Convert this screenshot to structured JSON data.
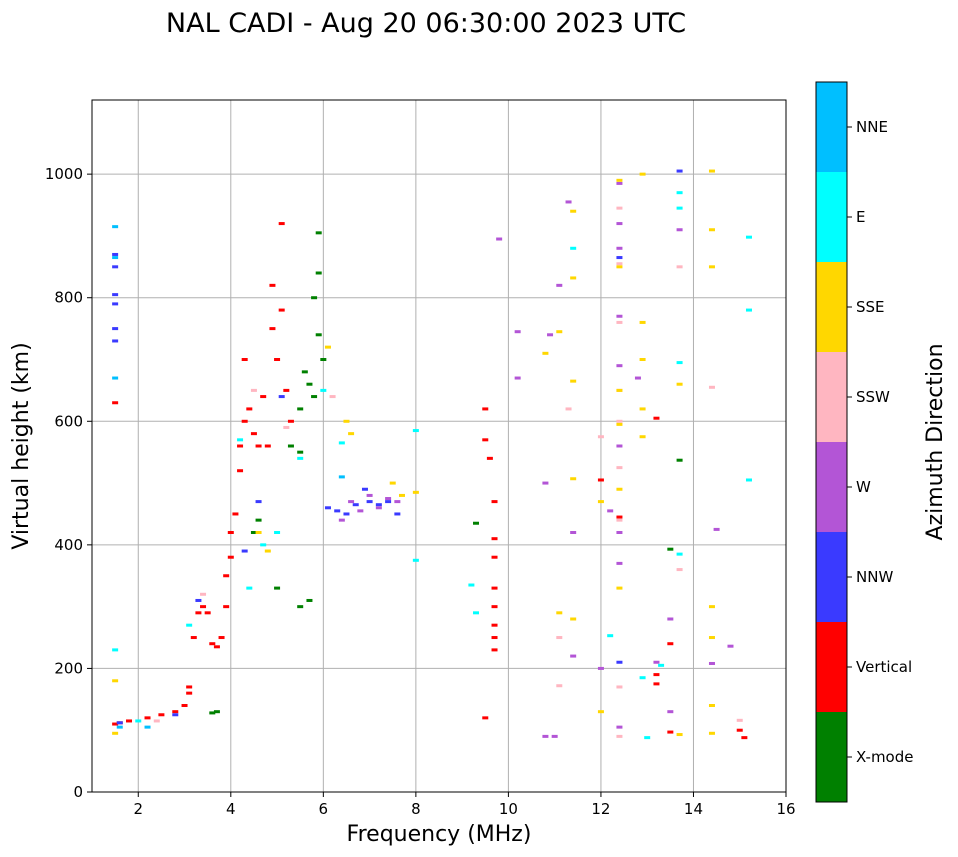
{
  "chart_data": {
    "type": "scatter",
    "title": "NAL CADI - Aug 20 06:30:00 2023 UTC",
    "xlabel": "Frequency (MHz)",
    "ylabel": "Virtual height (km)",
    "xlim": [
      1,
      16
    ],
    "ylim": [
      0,
      1120
    ],
    "xticks": [
      2,
      4,
      6,
      8,
      10,
      12,
      14,
      16
    ],
    "yticks": [
      0,
      200,
      400,
      600,
      800,
      1000
    ],
    "grid": true,
    "colorbar": {
      "title": "Azimuth Direction",
      "categories": [
        {
          "name": "X-mode",
          "color": "#008000"
        },
        {
          "name": "Vertical",
          "color": "#ff0000"
        },
        {
          "name": "NNW",
          "color": "#3a3aff"
        },
        {
          "name": "W",
          "color": "#b355d6"
        },
        {
          "name": "SSW",
          "color": "#ffb6c1"
        },
        {
          "name": "SSE",
          "color": "#ffd700"
        },
        {
          "name": "E",
          "color": "#00ffff"
        },
        {
          "name": "NNE",
          "color": "#00bfff"
        }
      ]
    },
    "series": [
      {
        "name": "Vertical",
        "points": [
          [
            1.5,
            110
          ],
          [
            1.6,
            112
          ],
          [
            1.8,
            115
          ],
          [
            2.2,
            120
          ],
          [
            2.5,
            125
          ],
          [
            2.8,
            130
          ],
          [
            3.0,
            140
          ],
          [
            3.1,
            160
          ],
          [
            3.1,
            170
          ],
          [
            3.2,
            250
          ],
          [
            3.3,
            290
          ],
          [
            3.4,
            300
          ],
          [
            3.5,
            290
          ],
          [
            3.6,
            240
          ],
          [
            3.7,
            235
          ],
          [
            3.8,
            250
          ],
          [
            3.9,
            300
          ],
          [
            3.9,
            350
          ],
          [
            4.0,
            380
          ],
          [
            4.0,
            420
          ],
          [
            4.1,
            450
          ],
          [
            4.2,
            520
          ],
          [
            4.2,
            560
          ],
          [
            4.3,
            600
          ],
          [
            4.3,
            700
          ],
          [
            4.4,
            620
          ],
          [
            4.5,
            580
          ],
          [
            4.6,
            560
          ],
          [
            4.7,
            640
          ],
          [
            4.8,
            560
          ],
          [
            4.9,
            820
          ],
          [
            4.9,
            750
          ],
          [
            5.0,
            700
          ],
          [
            5.1,
            780
          ],
          [
            5.1,
            920
          ],
          [
            5.2,
            650
          ],
          [
            5.3,
            600
          ],
          [
            1.5,
            630
          ],
          [
            9.5,
            620
          ],
          [
            9.5,
            570
          ],
          [
            9.6,
            540
          ],
          [
            9.7,
            470
          ],
          [
            9.7,
            410
          ],
          [
            9.7,
            380
          ],
          [
            9.7,
            330
          ],
          [
            9.7,
            300
          ],
          [
            9.7,
            270
          ],
          [
            9.7,
            250
          ],
          [
            9.7,
            230
          ],
          [
            9.5,
            120
          ],
          [
            13.2,
            605
          ],
          [
            13.2,
            190
          ],
          [
            13.2,
            175
          ],
          [
            13.5,
            240
          ],
          [
            13.5,
            97
          ],
          [
            15.0,
            100
          ],
          [
            15.1,
            88
          ],
          [
            12.0,
            505
          ],
          [
            12.4,
            445
          ]
        ]
      },
      {
        "name": "X-mode",
        "points": [
          [
            3.6,
            128
          ],
          [
            3.7,
            130
          ],
          [
            4.5,
            420
          ],
          [
            4.6,
            440
          ],
          [
            5.0,
            330
          ],
          [
            5.3,
            560
          ],
          [
            5.5,
            550
          ],
          [
            5.5,
            620
          ],
          [
            5.6,
            680
          ],
          [
            5.7,
            660
          ],
          [
            5.8,
            640
          ],
          [
            5.8,
            800
          ],
          [
            5.9,
            840
          ],
          [
            5.9,
            905
          ],
          [
            5.9,
            740
          ],
          [
            6.0,
            700
          ],
          [
            5.7,
            310
          ],
          [
            5.5,
            300
          ],
          [
            9.3,
            435
          ],
          [
            13.5,
            393
          ],
          [
            13.7,
            537
          ]
        ]
      },
      {
        "name": "NNW",
        "points": [
          [
            1.5,
            870
          ],
          [
            1.5,
            850
          ],
          [
            1.5,
            805
          ],
          [
            1.5,
            790
          ],
          [
            1.5,
            750
          ],
          [
            1.5,
            730
          ],
          [
            1.6,
            112
          ],
          [
            2.8,
            125
          ],
          [
            3.3,
            310
          ],
          [
            4.3,
            390
          ],
          [
            4.6,
            470
          ],
          [
            5.1,
            640
          ],
          [
            6.1,
            460
          ],
          [
            6.3,
            455
          ],
          [
            6.5,
            450
          ],
          [
            6.7,
            465
          ],
          [
            6.9,
            490
          ],
          [
            7.0,
            470
          ],
          [
            7.2,
            465
          ],
          [
            7.4,
            470
          ],
          [
            7.6,
            450
          ],
          [
            12.4,
            210
          ],
          [
            13.7,
            1005
          ],
          [
            12.4,
            865
          ]
        ]
      },
      {
        "name": "W",
        "points": [
          [
            6.4,
            440
          ],
          [
            6.6,
            470
          ],
          [
            6.8,
            455
          ],
          [
            7.0,
            480
          ],
          [
            7.2,
            460
          ],
          [
            7.4,
            475
          ],
          [
            7.6,
            470
          ],
          [
            9.8,
            895
          ],
          [
            10.2,
            745
          ],
          [
            10.2,
            670
          ],
          [
            10.8,
            500
          ],
          [
            10.9,
            740
          ],
          [
            11.1,
            820
          ],
          [
            11.3,
            955
          ],
          [
            11.4,
            420
          ],
          [
            11.4,
            220
          ],
          [
            12.0,
            200
          ],
          [
            12.2,
            455
          ],
          [
            12.4,
            985
          ],
          [
            12.4,
            920
          ],
          [
            12.4,
            880
          ],
          [
            12.4,
            770
          ],
          [
            12.4,
            690
          ],
          [
            12.4,
            560
          ],
          [
            12.4,
            420
          ],
          [
            12.4,
            370
          ],
          [
            12.8,
            670
          ],
          [
            13.2,
            210
          ],
          [
            13.5,
            280
          ],
          [
            13.5,
            130
          ],
          [
            13.7,
            910
          ],
          [
            14.5,
            425
          ],
          [
            14.4,
            208
          ],
          [
            14.8,
            236
          ],
          [
            10.8,
            90
          ],
          [
            11.0,
            90
          ],
          [
            12.4,
            105
          ]
        ]
      },
      {
        "name": "SSW",
        "points": [
          [
            2.4,
            115
          ],
          [
            3.4,
            320
          ],
          [
            4.5,
            650
          ],
          [
            5.2,
            590
          ],
          [
            6.2,
            640
          ],
          [
            11.1,
            250
          ],
          [
            11.3,
            620
          ],
          [
            12.0,
            575
          ],
          [
            12.4,
            945
          ],
          [
            12.4,
            855
          ],
          [
            12.4,
            760
          ],
          [
            12.4,
            650
          ],
          [
            12.4,
            600
          ],
          [
            12.4,
            525
          ],
          [
            12.4,
            440
          ],
          [
            12.4,
            170
          ],
          [
            12.4,
            90
          ],
          [
            13.7,
            850
          ],
          [
            13.7,
            360
          ],
          [
            14.4,
            655
          ],
          [
            15.0,
            116
          ],
          [
            11.1,
            172
          ]
        ]
      },
      {
        "name": "SSE",
        "points": [
          [
            1.5,
            180
          ],
          [
            1.5,
            95
          ],
          [
            4.6,
            420
          ],
          [
            4.8,
            390
          ],
          [
            6.1,
            720
          ],
          [
            6.5,
            600
          ],
          [
            6.6,
            580
          ],
          [
            7.5,
            500
          ],
          [
            7.7,
            480
          ],
          [
            8.0,
            485
          ],
          [
            10.8,
            710
          ],
          [
            11.1,
            745
          ],
          [
            11.1,
            290
          ],
          [
            11.4,
            940
          ],
          [
            11.4,
            832
          ],
          [
            11.4,
            665
          ],
          [
            11.4,
            507
          ],
          [
            11.4,
            280
          ],
          [
            12.0,
            470
          ],
          [
            12.0,
            130
          ],
          [
            12.4,
            990
          ],
          [
            12.4,
            850
          ],
          [
            12.4,
            650
          ],
          [
            12.4,
            595
          ],
          [
            12.4,
            490
          ],
          [
            12.4,
            330
          ],
          [
            12.9,
            1000
          ],
          [
            12.9,
            760
          ],
          [
            12.9,
            700
          ],
          [
            12.9,
            575
          ],
          [
            12.9,
            620
          ],
          [
            13.7,
            660
          ],
          [
            13.7,
            93
          ],
          [
            14.4,
            1005
          ],
          [
            14.4,
            910
          ],
          [
            14.4,
            850
          ],
          [
            14.4,
            300
          ],
          [
            14.4,
            250
          ],
          [
            14.4,
            140
          ],
          [
            14.4,
            95
          ]
        ]
      },
      {
        "name": "E",
        "points": [
          [
            1.5,
            230
          ],
          [
            2.0,
            115
          ],
          [
            3.1,
            270
          ],
          [
            4.2,
            570
          ],
          [
            4.4,
            330
          ],
          [
            4.7,
            400
          ],
          [
            5.0,
            420
          ],
          [
            5.5,
            540
          ],
          [
            6.0,
            650
          ],
          [
            6.4,
            565
          ],
          [
            8.0,
            585
          ],
          [
            8.0,
            375
          ],
          [
            9.2,
            335
          ],
          [
            9.3,
            290
          ],
          [
            11.4,
            880
          ],
          [
            12.2,
            253
          ],
          [
            12.9,
            185
          ],
          [
            13.3,
            205
          ],
          [
            13.7,
            970
          ],
          [
            13.7,
            695
          ],
          [
            13.7,
            385
          ],
          [
            13.7,
            945
          ],
          [
            15.2,
            898
          ],
          [
            15.2,
            780
          ],
          [
            15.2,
            505
          ],
          [
            13.0,
            88
          ]
        ]
      },
      {
        "name": "NNE",
        "points": [
          [
            1.5,
            915
          ],
          [
            1.5,
            865
          ],
          [
            1.5,
            670
          ],
          [
            1.6,
            105
          ],
          [
            6.4,
            510
          ],
          [
            2.2,
            105
          ]
        ]
      }
    ]
  }
}
